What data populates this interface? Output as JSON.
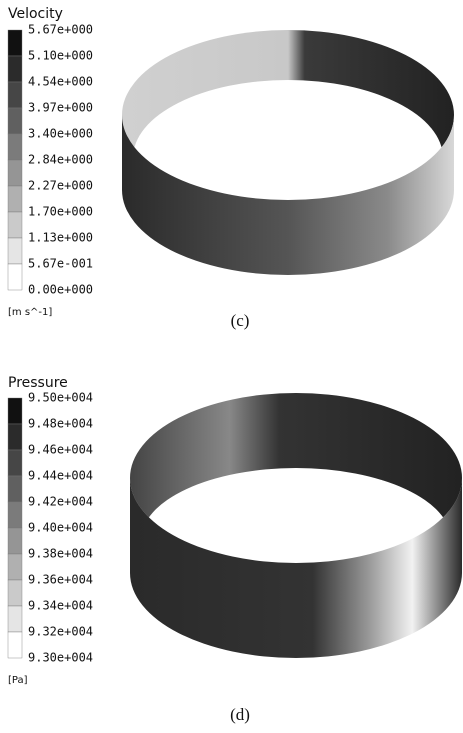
{
  "panels": [
    {
      "title": "Velocity",
      "legend_labels": [
        "5.67e+000",
        "5.10e+000",
        "4.54e+000",
        "3.97e+000",
        "3.40e+000",
        "2.84e+000",
        "2.27e+000",
        "1.70e+000",
        "1.13e+000",
        "5.67e-001",
        "0.00e+000"
      ],
      "unit": "[m s^-1]",
      "caption": "(c)"
    },
    {
      "title": "Pressure",
      "legend_labels": [
        "9.50e+004",
        "9.48e+004",
        "9.46e+004",
        "9.44e+004",
        "9.42e+004",
        "9.40e+004",
        "9.38e+004",
        "9.36e+004",
        "9.34e+004",
        "9.32e+004",
        "9.30e+004"
      ],
      "unit": "[Pa]",
      "caption": "(d)"
    }
  ]
}
